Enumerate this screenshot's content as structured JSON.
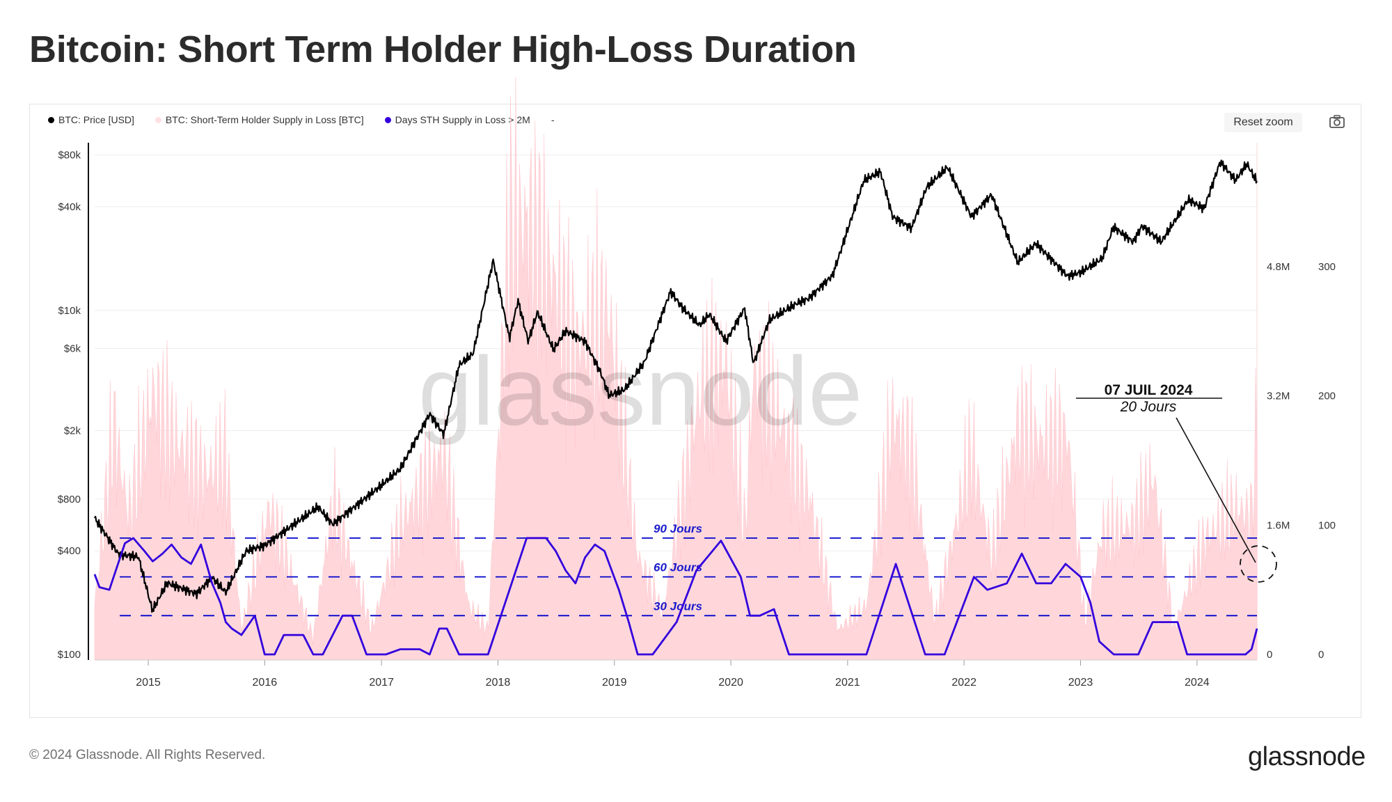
{
  "header": {
    "title": "Bitcoin: Short Term Holder High-Loss Duration"
  },
  "toolbar": {
    "reset_zoom_label": "Reset zoom",
    "camera_icon": "camera-icon"
  },
  "legend": {
    "items": [
      {
        "label": "BTC: Price [USD]",
        "color": "#000000"
      },
      {
        "label": "BTC: Short-Term Holder Supply in Loss [BTC]",
        "color": "#ffe0e3"
      },
      {
        "label": "Days STH Supply in Loss > 2M",
        "color": "#3300dd"
      },
      {
        "label": "-",
        "color": ""
      }
    ]
  },
  "watermark": "glassnode",
  "annotation": {
    "date": "07 JUIL 2024",
    "value": "20 Jours"
  },
  "footer": {
    "copyright": "© 2024 Glassnode. All Rights Reserved.",
    "logo": "glassnode"
  },
  "colors": {
    "price": "#000000",
    "supply_fill": "#ffd0d5",
    "days_line": "#3300dd",
    "threshold_line": "#0000cc",
    "label_blue": "#1a1acc"
  },
  "chart_data": {
    "type": "line",
    "title": "Bitcoin: Short Term Holder High-Loss Duration",
    "x_range": [
      "2014-07-17",
      "2024-07-07"
    ],
    "x_ticks": [
      "2015",
      "2016",
      "2017",
      "2018",
      "2019",
      "2020",
      "2021",
      "2022",
      "2023",
      "2024"
    ],
    "axes": {
      "price": {
        "scale": "log",
        "range": [
          100,
          100000
        ],
        "ticks": [
          {
            "v": 100,
            "label": "$100"
          },
          {
            "v": 400,
            "label": "$400"
          },
          {
            "v": 800,
            "label": "$800"
          },
          {
            "v": 2000,
            "label": "$2k"
          },
          {
            "v": 6000,
            "label": "$6k"
          },
          {
            "v": 10000,
            "label": "$10k"
          },
          {
            "v": 40000,
            "label": "$40k"
          },
          {
            "v": 80000,
            "label": "$80k"
          }
        ]
      },
      "supply": {
        "scale": "linear",
        "range": [
          0,
          6400000
        ],
        "ticks": [
          {
            "v": 0,
            "label": "0"
          },
          {
            "v": 1600000,
            "label": "1.6M"
          },
          {
            "v": 3200000,
            "label": "3.2M"
          },
          {
            "v": 4800000,
            "label": "4.8M"
          }
        ]
      },
      "days": {
        "scale": "linear",
        "range": [
          0,
          400
        ],
        "ticks": [
          {
            "v": 0,
            "label": "0"
          },
          {
            "v": 100,
            "label": "100"
          },
          {
            "v": 200,
            "label": "200"
          },
          {
            "v": 300,
            "label": "300"
          }
        ]
      }
    },
    "thresholds": [
      {
        "days": 90,
        "label": "90 Jours"
      },
      {
        "days": 60,
        "label": "60 Jours"
      },
      {
        "days": 30,
        "label": "30 Jours"
      }
    ],
    "series": [
      {
        "name": "BTC: Price [USD]",
        "axis": "price",
        "points": [
          [
            "2014-07-17",
            620
          ],
          [
            "2014-10-01",
            380
          ],
          [
            "2014-12-01",
            370
          ],
          [
            "2015-01-14",
            180
          ],
          [
            "2015-03-01",
            260
          ],
          [
            "2015-06-01",
            225
          ],
          [
            "2015-07-20",
            280
          ],
          [
            "2015-09-01",
            230
          ],
          [
            "2015-11-04",
            400
          ],
          [
            "2016-01-01",
            430
          ],
          [
            "2016-06-16",
            720
          ],
          [
            "2016-08-01",
            570
          ],
          [
            "2016-12-31",
            960
          ],
          [
            "2017-03-01",
            1200
          ],
          [
            "2017-06-01",
            2500
          ],
          [
            "2017-07-15",
            1900
          ],
          [
            "2017-09-01",
            4800
          ],
          [
            "2017-10-15",
            5600
          ],
          [
            "2017-12-17",
            19500
          ],
          [
            "2018-02-06",
            6900
          ],
          [
            "2018-03-05",
            11400
          ],
          [
            "2018-04-06",
            6600
          ],
          [
            "2018-05-05",
            9800
          ],
          [
            "2018-06-24",
            5900
          ],
          [
            "2018-08-01",
            7600
          ],
          [
            "2018-10-01",
            6600
          ],
          [
            "2018-11-20",
            4300
          ],
          [
            "2018-12-15",
            3200
          ],
          [
            "2019-02-01",
            3450
          ],
          [
            "2019-04-05",
            5000
          ],
          [
            "2019-06-26",
            12900
          ],
          [
            "2019-08-01",
            10400
          ],
          [
            "2019-09-25",
            8200
          ],
          [
            "2019-10-26",
            9500
          ],
          [
            "2019-12-17",
            6600
          ],
          [
            "2020-02-13",
            10300
          ],
          [
            "2020-03-12",
            4900
          ],
          [
            "2020-05-01",
            8800
          ],
          [
            "2020-07-27",
            11000
          ],
          [
            "2020-09-01",
            11700
          ],
          [
            "2020-11-15",
            16000
          ],
          [
            "2020-12-31",
            29000
          ],
          [
            "2021-02-21",
            57000
          ],
          [
            "2021-04-14",
            64000
          ],
          [
            "2021-05-22",
            35000
          ],
          [
            "2021-07-20",
            30000
          ],
          [
            "2021-09-06",
            52000
          ],
          [
            "2021-11-10",
            68000
          ],
          [
            "2022-01-24",
            35000
          ],
          [
            "2022-03-28",
            47000
          ],
          [
            "2022-06-18",
            19000
          ],
          [
            "2022-08-14",
            24500
          ],
          [
            "2022-11-21",
            15800
          ],
          [
            "2023-01-01",
            16600
          ],
          [
            "2023-03-10",
            20000
          ],
          [
            "2023-04-14",
            30500
          ],
          [
            "2023-06-15",
            25000
          ],
          [
            "2023-07-13",
            31000
          ],
          [
            "2023-09-11",
            25000
          ],
          [
            "2023-12-05",
            44000
          ],
          [
            "2024-01-23",
            39000
          ],
          [
            "2024-03-14",
            73000
          ],
          [
            "2024-05-01",
            57000
          ],
          [
            "2024-06-05",
            71000
          ],
          [
            "2024-07-07",
            56000
          ]
        ]
      },
      {
        "name": "BTC: Short-Term Holder Supply in Loss [BTC]",
        "axis": "supply",
        "points": [
          [
            "2014-07-17",
            600000
          ],
          [
            "2014-09-15",
            2800000
          ],
          [
            "2014-11-01",
            1700000
          ],
          [
            "2015-01-15",
            3200000
          ],
          [
            "2015-04-01",
            2600000
          ],
          [
            "2015-07-01",
            2200000
          ],
          [
            "2015-09-01",
            2400000
          ],
          [
            "2015-10-20",
            300000
          ],
          [
            "2016-01-15",
            1800000
          ],
          [
            "2016-06-01",
            200000
          ],
          [
            "2016-08-03",
            1900000
          ],
          [
            "2016-12-01",
            300000
          ],
          [
            "2017-03-01",
            1600000
          ],
          [
            "2017-07-15",
            2500000
          ],
          [
            "2017-10-01",
            600000
          ],
          [
            "2017-12-01",
            300000
          ],
          [
            "2018-02-06",
            5200000
          ],
          [
            "2018-04-06",
            5300000
          ],
          [
            "2018-06-24",
            4600000
          ],
          [
            "2018-09-01",
            3800000
          ],
          [
            "2018-12-15",
            4200000
          ],
          [
            "2019-03-15",
            1200000
          ],
          [
            "2019-06-01",
            500000
          ],
          [
            "2019-09-25",
            3200000
          ],
          [
            "2019-12-17",
            3600000
          ],
          [
            "2020-02-15",
            1500000
          ],
          [
            "2020-03-12",
            3500000
          ],
          [
            "2020-06-01",
            2900000
          ],
          [
            "2020-09-05",
            1900000
          ],
          [
            "2020-12-01",
            300000
          ],
          [
            "2021-03-01",
            600000
          ],
          [
            "2021-05-22",
            2900000
          ],
          [
            "2021-07-20",
            2500000
          ],
          [
            "2021-10-01",
            400000
          ],
          [
            "2021-12-01",
            1500000
          ],
          [
            "2022-01-24",
            2500000
          ],
          [
            "2022-03-28",
            1200000
          ],
          [
            "2022-06-18",
            2800000
          ],
          [
            "2022-09-01",
            2600000
          ],
          [
            "2022-11-21",
            2700000
          ],
          [
            "2023-01-15",
            400000
          ],
          [
            "2023-03-10",
            1500000
          ],
          [
            "2023-06-15",
            1600000
          ],
          [
            "2023-08-18",
            2200000
          ],
          [
            "2023-10-20",
            300000
          ],
          [
            "2024-01-23",
            1400000
          ],
          [
            "2024-05-01",
            1800000
          ],
          [
            "2024-06-20",
            1700000
          ],
          [
            "2024-07-07",
            2800000
          ]
        ]
      },
      {
        "name": "Days STH Supply in Loss > 2M",
        "axis": "days",
        "points": [
          [
            "2014-07-17",
            62
          ],
          [
            "2014-08-01",
            52
          ],
          [
            "2014-09-01",
            50
          ],
          [
            "2014-10-20",
            86
          ],
          [
            "2014-11-15",
            90
          ],
          [
            "2014-12-20",
            80
          ],
          [
            "2015-01-15",
            72
          ],
          [
            "2015-02-15",
            78
          ],
          [
            "2015-03-15",
            85
          ],
          [
            "2015-04-15",
            75
          ],
          [
            "2015-05-15",
            70
          ],
          [
            "2015-06-15",
            85
          ],
          [
            "2015-07-20",
            55
          ],
          [
            "2015-08-15",
            40
          ],
          [
            "2015-09-01",
            25
          ],
          [
            "2015-09-20",
            20
          ],
          [
            "2015-10-20",
            15
          ],
          [
            "2015-12-01",
            30
          ],
          [
            "2016-01-01",
            0
          ],
          [
            "2016-02-01",
            0
          ],
          [
            "2016-03-01",
            15
          ],
          [
            "2016-05-01",
            15
          ],
          [
            "2016-06-01",
            0
          ],
          [
            "2016-07-01",
            0
          ],
          [
            "2016-09-01",
            30
          ],
          [
            "2016-10-01",
            30
          ],
          [
            "2016-11-15",
            0
          ],
          [
            "2017-01-15",
            0
          ],
          [
            "2017-03-01",
            4
          ],
          [
            "2017-05-01",
            4
          ],
          [
            "2017-06-01",
            0
          ],
          [
            "2017-07-01",
            20
          ],
          [
            "2017-07-25",
            20
          ],
          [
            "2017-09-01",
            0
          ],
          [
            "2017-12-01",
            0
          ],
          [
            "2018-04-01",
            90
          ],
          [
            "2018-06-01",
            90
          ],
          [
            "2018-07-01",
            80
          ],
          [
            "2018-08-01",
            65
          ],
          [
            "2018-09-01",
            55
          ],
          [
            "2018-10-01",
            75
          ],
          [
            "2018-11-01",
            85
          ],
          [
            "2018-12-01",
            80
          ],
          [
            "2019-01-15",
            50
          ],
          [
            "2019-02-15",
            25
          ],
          [
            "2019-03-15",
            0
          ],
          [
            "2019-05-01",
            0
          ],
          [
            "2019-07-15",
            25
          ],
          [
            "2019-09-15",
            65
          ],
          [
            "2019-12-01",
            88
          ],
          [
            "2020-02-01",
            60
          ],
          [
            "2020-03-01",
            30
          ],
          [
            "2020-04-01",
            30
          ],
          [
            "2020-05-15",
            35
          ],
          [
            "2020-07-01",
            0
          ],
          [
            "2020-12-01",
            0
          ],
          [
            "2021-03-01",
            0
          ],
          [
            "2021-06-01",
            70
          ],
          [
            "2021-09-01",
            0
          ],
          [
            "2021-11-01",
            0
          ],
          [
            "2022-02-01",
            60
          ],
          [
            "2022-03-15",
            50
          ],
          [
            "2022-05-15",
            55
          ],
          [
            "2022-07-01",
            78
          ],
          [
            "2022-08-15",
            55
          ],
          [
            "2022-10-01",
            55
          ],
          [
            "2022-11-15",
            70
          ],
          [
            "2023-01-01",
            60
          ],
          [
            "2023-02-01",
            40
          ],
          [
            "2023-03-01",
            10
          ],
          [
            "2023-04-15",
            0
          ],
          [
            "2023-07-01",
            0
          ],
          [
            "2023-08-15",
            25
          ],
          [
            "2023-11-01",
            25
          ],
          [
            "2023-12-01",
            0
          ],
          [
            "2024-06-01",
            0
          ],
          [
            "2024-06-20",
            4
          ],
          [
            "2024-07-07",
            20
          ]
        ]
      }
    ]
  }
}
